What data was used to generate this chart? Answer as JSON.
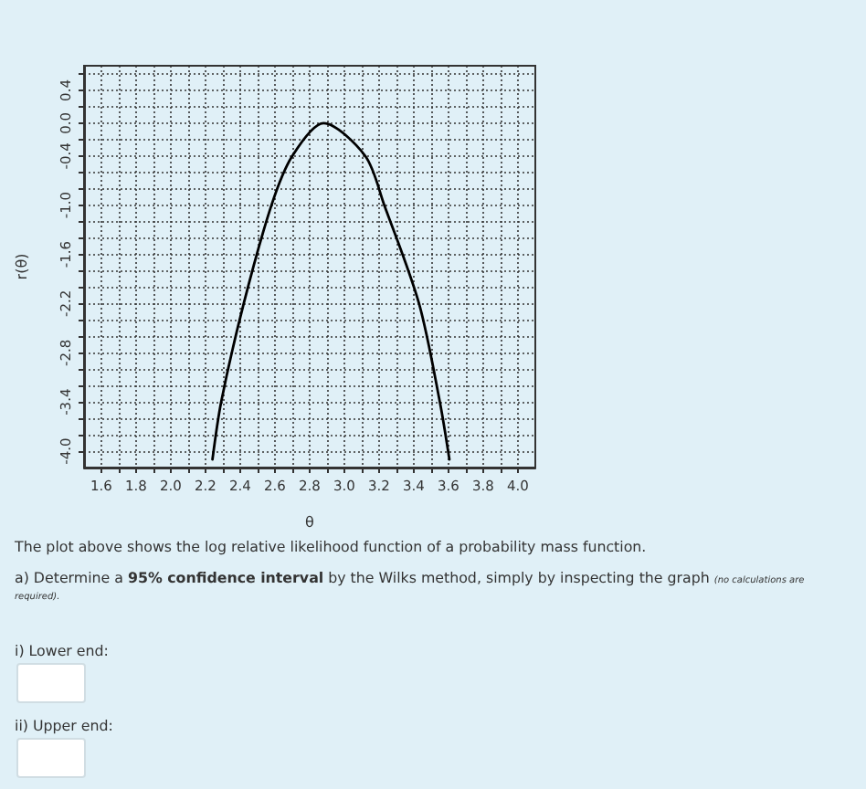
{
  "chart_data": {
    "type": "line",
    "xlabel": "θ",
    "ylabel": "r(θ)",
    "x": [
      2.24,
      2.29,
      2.42,
      2.58,
      2.7,
      2.88,
      3.12,
      3.23,
      3.43,
      3.55,
      3.605
    ],
    "series": [
      {
        "color": "#000000",
        "values": [
          -4.1,
          -3.4,
          -2.2,
          -1.0,
          -0.4,
          0.0,
          -0.4,
          -1.0,
          -2.2,
          -3.4,
          -4.1
        ]
      }
    ],
    "xlim": [
      1.5,
      4.1
    ],
    "xticks": [
      1.6,
      {
        "value": 1.7,
        "label": null
      },
      1.8,
      {
        "value": 1.9,
        "label": null
      },
      {
        "value": 2.0,
        "label": "2.0"
      },
      {
        "value": 2.1,
        "label": null
      },
      2.2,
      {
        "value": 2.3,
        "label": null
      },
      2.4,
      {
        "value": 2.5,
        "label": null
      },
      2.6,
      {
        "value": 2.7,
        "label": null
      },
      2.8,
      {
        "value": 2.9,
        "label": null
      },
      {
        "value": 3.0,
        "label": "3.0"
      },
      {
        "value": 3.1,
        "label": null
      },
      3.2,
      {
        "value": 3.3,
        "label": null
      },
      3.4,
      {
        "value": 3.5,
        "label": null
      },
      3.6,
      {
        "value": 3.7,
        "label": null
      },
      3.8,
      {
        "value": 3.9,
        "label": null
      },
      {
        "value": 4.0,
        "label": "4.0"
      }
    ],
    "ylim": [
      -4.2,
      0.7
    ],
    "yticks": [
      {
        "value": -4.0,
        "label": "-4.0"
      },
      {
        "value": -3.8,
        "label": null
      },
      {
        "value": -3.6,
        "label": null
      },
      -3.4,
      {
        "value": -3.2,
        "label": null
      },
      {
        "value": -3.0,
        "label": null
      },
      -2.8,
      {
        "value": -2.6,
        "label": null
      },
      {
        "value": -2.4,
        "label": null
      },
      -2.2,
      {
        "value": -2.0,
        "label": null
      },
      {
        "value": -1.8,
        "label": null
      },
      -1.6,
      {
        "value": -1.4,
        "label": null
      },
      {
        "value": -1.2,
        "label": null
      },
      {
        "value": -1.0,
        "label": "-1.0"
      },
      {
        "value": -0.8,
        "label": null
      },
      {
        "value": -0.6,
        "label": null
      },
      -0.4,
      {
        "value": -0.2,
        "label": null
      },
      {
        "value": 0.0,
        "label": "0.0"
      },
      {
        "value": 0.2,
        "label": null
      },
      {
        "value": 0.4,
        "label": "0.4"
      },
      {
        "value": 0.6,
        "label": null
      }
    ],
    "grid": true,
    "marker": "none",
    "line_style": "solid",
    "annotations": [
      "The plot above shows the log relative likelihood function of a probability mass function.",
      "a) Determine a",
      "95% confidence interval",
      "by the Wilks method, simply by inspecting the graph",
      "(no calculations are required).",
      "i) Lower end:",
      "ii) Upper end:"
    ]
  }
}
